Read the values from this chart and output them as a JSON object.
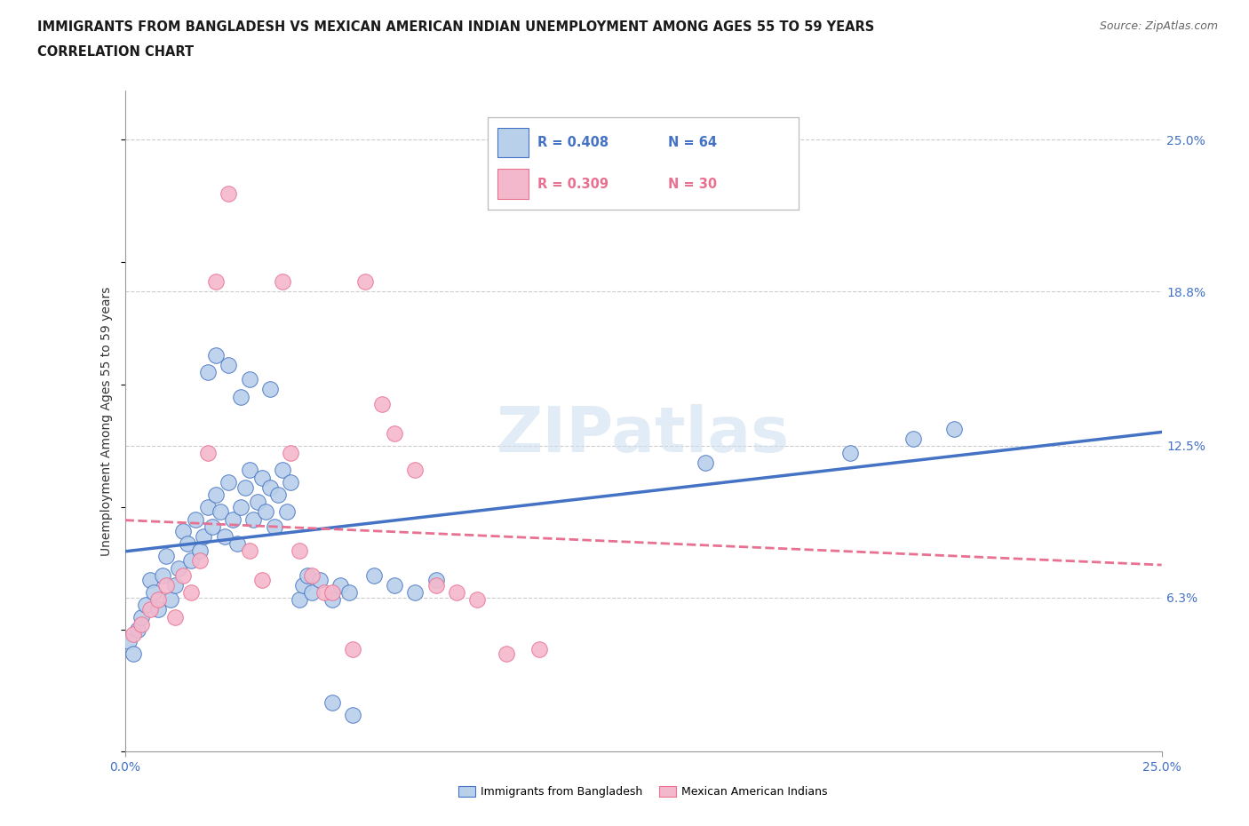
{
  "title_line1": "IMMIGRANTS FROM BANGLADESH VS MEXICAN AMERICAN INDIAN UNEMPLOYMENT AMONG AGES 55 TO 59 YEARS",
  "title_line2": "CORRELATION CHART",
  "source": "Source: ZipAtlas.com",
  "ylabel": "Unemployment Among Ages 55 to 59 years",
  "xlim": [
    0.0,
    0.25
  ],
  "ylim": [
    0.0,
    0.27
  ],
  "ytick_labels": [
    "6.3%",
    "12.5%",
    "18.8%",
    "25.0%"
  ],
  "ytick_values": [
    0.063,
    0.125,
    0.188,
    0.25
  ],
  "watermark": "ZIPatlas",
  "r1": 0.408,
  "n1": 64,
  "r2": 0.309,
  "n2": 30,
  "color_blue": "#b8d0ea",
  "color_pink": "#f4b8cc",
  "line_blue": "#4472c4",
  "line_pink": "#e87090",
  "blue_scatter": [
    [
      0.001,
      0.045
    ],
    [
      0.002,
      0.04
    ],
    [
      0.003,
      0.05
    ],
    [
      0.004,
      0.055
    ],
    [
      0.005,
      0.06
    ],
    [
      0.006,
      0.07
    ],
    [
      0.007,
      0.065
    ],
    [
      0.008,
      0.058
    ],
    [
      0.009,
      0.072
    ],
    [
      0.01,
      0.08
    ],
    [
      0.011,
      0.062
    ],
    [
      0.012,
      0.068
    ],
    [
      0.013,
      0.075
    ],
    [
      0.014,
      0.09
    ],
    [
      0.015,
      0.085
    ],
    [
      0.016,
      0.078
    ],
    [
      0.017,
      0.095
    ],
    [
      0.018,
      0.082
    ],
    [
      0.019,
      0.088
    ],
    [
      0.02,
      0.1
    ],
    [
      0.021,
      0.092
    ],
    [
      0.022,
      0.105
    ],
    [
      0.023,
      0.098
    ],
    [
      0.024,
      0.088
    ],
    [
      0.025,
      0.11
    ],
    [
      0.026,
      0.095
    ],
    [
      0.027,
      0.085
    ],
    [
      0.028,
      0.1
    ],
    [
      0.029,
      0.108
    ],
    [
      0.03,
      0.115
    ],
    [
      0.031,
      0.095
    ],
    [
      0.032,
      0.102
    ],
    [
      0.033,
      0.112
    ],
    [
      0.034,
      0.098
    ],
    [
      0.035,
      0.108
    ],
    [
      0.036,
      0.092
    ],
    [
      0.037,
      0.105
    ],
    [
      0.038,
      0.115
    ],
    [
      0.039,
      0.098
    ],
    [
      0.04,
      0.11
    ],
    [
      0.042,
      0.062
    ],
    [
      0.043,
      0.068
    ],
    [
      0.044,
      0.072
    ],
    [
      0.045,
      0.065
    ],
    [
      0.047,
      0.07
    ],
    [
      0.05,
      0.062
    ],
    [
      0.052,
      0.068
    ],
    [
      0.054,
      0.065
    ],
    [
      0.02,
      0.155
    ],
    [
      0.022,
      0.162
    ],
    [
      0.025,
      0.158
    ],
    [
      0.028,
      0.145
    ],
    [
      0.03,
      0.152
    ],
    [
      0.035,
      0.148
    ],
    [
      0.06,
      0.072
    ],
    [
      0.065,
      0.068
    ],
    [
      0.07,
      0.065
    ],
    [
      0.075,
      0.07
    ],
    [
      0.14,
      0.118
    ],
    [
      0.175,
      0.122
    ],
    [
      0.19,
      0.128
    ],
    [
      0.2,
      0.132
    ],
    [
      0.05,
      0.02
    ],
    [
      0.055,
      0.015
    ]
  ],
  "pink_scatter": [
    [
      0.002,
      0.048
    ],
    [
      0.004,
      0.052
    ],
    [
      0.006,
      0.058
    ],
    [
      0.008,
      0.062
    ],
    [
      0.01,
      0.068
    ],
    [
      0.012,
      0.055
    ],
    [
      0.014,
      0.072
    ],
    [
      0.016,
      0.065
    ],
    [
      0.018,
      0.078
    ],
    [
      0.02,
      0.122
    ],
    [
      0.022,
      0.192
    ],
    [
      0.025,
      0.228
    ],
    [
      0.03,
      0.082
    ],
    [
      0.033,
      0.07
    ],
    [
      0.038,
      0.192
    ],
    [
      0.04,
      0.122
    ],
    [
      0.042,
      0.082
    ],
    [
      0.045,
      0.072
    ],
    [
      0.048,
      0.065
    ],
    [
      0.05,
      0.065
    ],
    [
      0.055,
      0.042
    ],
    [
      0.058,
      0.192
    ],
    [
      0.062,
      0.142
    ],
    [
      0.065,
      0.13
    ],
    [
      0.07,
      0.115
    ],
    [
      0.075,
      0.068
    ],
    [
      0.08,
      0.065
    ],
    [
      0.085,
      0.062
    ],
    [
      0.092,
      0.04
    ],
    [
      0.1,
      0.042
    ]
  ]
}
